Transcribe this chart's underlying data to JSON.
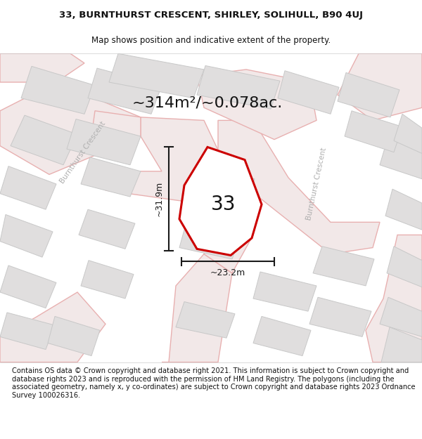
{
  "title_line1": "33, BURNTHURST CRESCENT, SHIRLEY, SOLIHULL, B90 4UJ",
  "title_line2": "Map shows position and indicative extent of the property.",
  "area_text": "~314m²/~0.078ac.",
  "dim_vertical": "~31.9m",
  "dim_horizontal": "~23.2m",
  "plot_number": "33",
  "footer_text": "Contains OS data © Crown copyright and database right 2021. This information is subject to Crown copyright and database rights 2023 and is reproduced with the permission of HM Land Registry. The polygons (including the associated geometry, namely x, y co-ordinates) are subject to Crown copyright and database rights 2023 Ordnance Survey 100026316.",
  "map_bg": "#f7f5f5",
  "road_line_color": "#e8b0b0",
  "road_fill_color": "#f2e8e8",
  "building_fc": "#e0dede",
  "building_ec": "#c8c8c8",
  "plot_ec": "#cc0000",
  "plot_fc": "#ffffff",
  "dim_color": "#1a1a1a",
  "road_label_color": "#b0b0b0",
  "text_black": "#111111",
  "plot_lw": 2.2,
  "building_lw": 0.7,
  "road_lw": 1.0
}
